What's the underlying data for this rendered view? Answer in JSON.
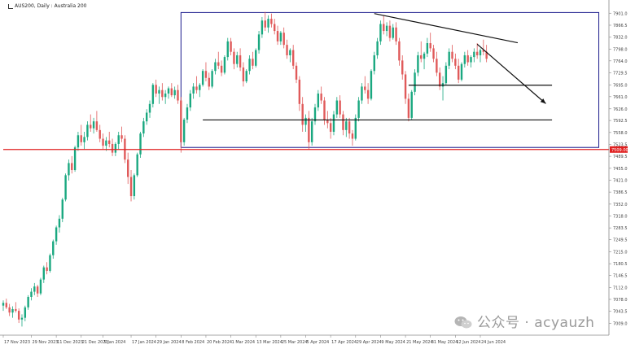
{
  "header": {
    "symbol_line": "AUS200, Daily : Australia 200"
  },
  "watermark": {
    "text": "公众号 · acyauzh",
    "icon": "wechat-icon"
  },
  "colors": {
    "bull": "#1aa880",
    "bear": "#e05a5a",
    "box": "#1b1b8c",
    "hline": "#e02020",
    "trend": "#111111",
    "axis_text": "#444444"
  },
  "chart_data": {
    "type": "candlestick",
    "title": "",
    "ylim": [
      6975,
      7925
    ],
    "y_ticks": [
      7901.0,
      7866.5,
      7832.0,
      7798.0,
      7764.0,
      7729.5,
      7695.0,
      7661.0,
      7626.0,
      7592.5,
      7558.0,
      7523.5,
      7489.5,
      7455.0,
      7421.0,
      7386.5,
      7352.0,
      7318.0,
      7283.5,
      7249.5,
      7215.0,
      7180.5,
      7146.5,
      7112.0,
      7078.0,
      7043.5,
      7009.0
    ],
    "x_ticks": [
      {
        "label": "17 Nov 2023",
        "i": 0
      },
      {
        "label": "29 Nov 2023",
        "i": 9
      },
      {
        "label": "11 Dec 2023",
        "i": 17
      },
      {
        "label": "21 Dec 2023",
        "i": 25
      },
      {
        "label": "5 Jan 2024",
        "i": 32
      },
      {
        "label": "17 Jan 2024",
        "i": 41
      },
      {
        "label": "29 Jan 2024",
        "i": 49
      },
      {
        "label": "8 Feb 2024",
        "i": 57
      },
      {
        "label": "20 Feb 2024",
        "i": 65
      },
      {
        "label": "1 Mar 2024",
        "i": 73
      },
      {
        "label": "13 Mar 2024",
        "i": 81
      },
      {
        "label": "25 Mar 2024",
        "i": 89
      },
      {
        "label": "5 Apr 2024",
        "i": 97
      },
      {
        "label": "17 Apr 2024",
        "i": 105
      },
      {
        "label": "29 Apr 2024",
        "i": 113
      },
      {
        "label": "9 May 2024",
        "i": 121
      },
      {
        "label": "21 May 2024",
        "i": 129
      },
      {
        "label": "31 May 2024",
        "i": 137
      },
      {
        "label": "12 Jun 2024",
        "i": 145
      },
      {
        "label": "24 Jun 2024",
        "i": 153
      }
    ],
    "candles": [
      [
        7060,
        7075,
        7045,
        7068
      ],
      [
        7068,
        7080,
        7050,
        7055
      ],
      [
        7055,
        7065,
        7030,
        7040
      ],
      [
        7040,
        7058,
        7025,
        7050
      ],
      [
        7050,
        7070,
        7040,
        7045
      ],
      [
        7045,
        7052,
        7010,
        7020
      ],
      [
        7020,
        7035,
        7000,
        7025
      ],
      [
        7025,
        7060,
        7015,
        7055
      ],
      [
        7055,
        7090,
        7048,
        7085
      ],
      [
        7085,
        7110,
        7075,
        7100
      ],
      [
        7100,
        7125,
        7090,
        7115
      ],
      [
        7115,
        7120,
        7085,
        7095
      ],
      [
        7095,
        7140,
        7090,
        7135
      ],
      [
        7135,
        7175,
        7125,
        7170
      ],
      [
        7170,
        7185,
        7150,
        7160
      ],
      [
        7160,
        7210,
        7155,
        7205
      ],
      [
        7205,
        7250,
        7195,
        7245
      ],
      [
        7245,
        7290,
        7235,
        7285
      ],
      [
        7285,
        7320,
        7270,
        7310
      ],
      [
        7310,
        7370,
        7300,
        7365
      ],
      [
        7365,
        7440,
        7360,
        7435
      ],
      [
        7435,
        7480,
        7420,
        7470
      ],
      [
        7470,
        7490,
        7440,
        7450
      ],
      [
        7450,
        7520,
        7445,
        7515
      ],
      [
        7515,
        7560,
        7505,
        7550
      ],
      [
        7550,
        7580,
        7520,
        7530
      ],
      [
        7530,
        7560,
        7510,
        7545
      ],
      [
        7545,
        7590,
        7535,
        7580
      ],
      [
        7580,
        7610,
        7560,
        7570
      ],
      [
        7570,
        7600,
        7555,
        7590
      ],
      [
        7590,
        7620,
        7560,
        7565
      ],
      [
        7565,
        7580,
        7530,
        7540
      ],
      [
        7540,
        7555,
        7510,
        7520
      ],
      [
        7520,
        7545,
        7505,
        7535
      ],
      [
        7535,
        7560,
        7515,
        7525
      ],
      [
        7525,
        7540,
        7490,
        7500
      ],
      [
        7500,
        7530,
        7490,
        7525
      ],
      [
        7525,
        7560,
        7510,
        7550
      ],
      [
        7550,
        7575,
        7530,
        7540
      ],
      [
        7540,
        7550,
        7470,
        7480
      ],
      [
        7480,
        7500,
        7410,
        7430
      ],
      [
        7430,
        7450,
        7360,
        7375
      ],
      [
        7375,
        7440,
        7365,
        7435
      ],
      [
        7435,
        7500,
        7430,
        7495
      ],
      [
        7495,
        7560,
        7485,
        7555
      ],
      [
        7555,
        7600,
        7545,
        7590
      ],
      [
        7590,
        7625,
        7580,
        7615
      ],
      [
        7615,
        7650,
        7600,
        7640
      ],
      [
        7640,
        7700,
        7630,
        7695
      ],
      [
        7695,
        7710,
        7660,
        7670
      ],
      [
        7670,
        7690,
        7640,
        7680
      ],
      [
        7680,
        7700,
        7650,
        7660
      ],
      [
        7660,
        7680,
        7640,
        7670
      ],
      [
        7670,
        7690,
        7655,
        7685
      ],
      [
        7685,
        7700,
        7660,
        7665
      ],
      [
        7665,
        7690,
        7655,
        7680
      ],
      [
        7680,
        7695,
        7640,
        7650
      ],
      [
        7650,
        7660,
        7500,
        7530
      ],
      [
        7530,
        7600,
        7520,
        7595
      ],
      [
        7595,
        7640,
        7585,
        7630
      ],
      [
        7630,
        7680,
        7620,
        7670
      ],
      [
        7670,
        7700,
        7655,
        7690
      ],
      [
        7690,
        7720,
        7670,
        7680
      ],
      [
        7680,
        7700,
        7660,
        7695
      ],
      [
        7695,
        7740,
        7690,
        7735
      ],
      [
        7735,
        7760,
        7705,
        7715
      ],
      [
        7715,
        7730,
        7680,
        7690
      ],
      [
        7690,
        7740,
        7685,
        7735
      ],
      [
        7735,
        7770,
        7725,
        7760
      ],
      [
        7760,
        7790,
        7740,
        7750
      ],
      [
        7750,
        7765,
        7720,
        7730
      ],
      [
        7730,
        7780,
        7725,
        7775
      ],
      [
        7775,
        7830,
        7765,
        7820
      ],
      [
        7820,
        7830,
        7780,
        7790
      ],
      [
        7790,
        7800,
        7740,
        7755
      ],
      [
        7755,
        7790,
        7745,
        7780
      ],
      [
        7780,
        7800,
        7735,
        7745
      ],
      [
        7745,
        7760,
        7690,
        7705
      ],
      [
        7705,
        7740,
        7700,
        7735
      ],
      [
        7735,
        7780,
        7725,
        7770
      ],
      [
        7770,
        7790,
        7740,
        7750
      ],
      [
        7750,
        7800,
        7745,
        7795
      ],
      [
        7795,
        7850,
        7785,
        7840
      ],
      [
        7840,
        7890,
        7830,
        7880
      ],
      [
        7880,
        7905,
        7850,
        7860
      ],
      [
        7860,
        7895,
        7845,
        7885
      ],
      [
        7885,
        7900,
        7860,
        7870
      ],
      [
        7870,
        7885,
        7840,
        7850
      ],
      [
        7850,
        7865,
        7810,
        7820
      ],
      [
        7820,
        7850,
        7810,
        7845
      ],
      [
        7845,
        7860,
        7800,
        7810
      ],
      [
        7810,
        7825,
        7770,
        7780
      ],
      [
        7780,
        7800,
        7760,
        7795
      ],
      [
        7795,
        7810,
        7740,
        7750
      ],
      [
        7750,
        7760,
        7700,
        7710
      ],
      [
        7710,
        7720,
        7620,
        7640
      ],
      [
        7640,
        7660,
        7560,
        7580
      ],
      [
        7580,
        7610,
        7560,
        7600
      ],
      [
        7600,
        7620,
        7510,
        7530
      ],
      [
        7530,
        7600,
        7520,
        7590
      ],
      [
        7590,
        7640,
        7580,
        7630
      ],
      [
        7630,
        7680,
        7620,
        7670
      ],
      [
        7670,
        7690,
        7640,
        7650
      ],
      [
        7650,
        7660,
        7580,
        7595
      ],
      [
        7595,
        7620,
        7570,
        7585
      ],
      [
        7585,
        7600,
        7540,
        7560
      ],
      [
        7560,
        7620,
        7550,
        7610
      ],
      [
        7610,
        7660,
        7600,
        7650
      ],
      [
        7650,
        7665,
        7600,
        7610
      ],
      [
        7610,
        7620,
        7550,
        7565
      ],
      [
        7565,
        7600,
        7545,
        7590
      ],
      [
        7590,
        7600,
        7540,
        7555
      ],
      [
        7555,
        7565,
        7520,
        7540
      ],
      [
        7540,
        7610,
        7535,
        7600
      ],
      [
        7600,
        7660,
        7590,
        7650
      ],
      [
        7650,
        7700,
        7640,
        7690
      ],
      [
        7690,
        7720,
        7670,
        7680
      ],
      [
        7680,
        7700,
        7640,
        7655
      ],
      [
        7655,
        7740,
        7650,
        7735
      ],
      [
        7735,
        7790,
        7725,
        7780
      ],
      [
        7780,
        7830,
        7770,
        7820
      ],
      [
        7820,
        7880,
        7810,
        7870
      ],
      [
        7870,
        7895,
        7840,
        7850
      ],
      [
        7850,
        7875,
        7835,
        7865
      ],
      [
        7865,
        7880,
        7820,
        7830
      ],
      [
        7830,
        7870,
        7825,
        7860
      ],
      [
        7860,
        7875,
        7810,
        7820
      ],
      [
        7820,
        7830,
        7750,
        7765
      ],
      [
        7765,
        7780,
        7710,
        7725
      ],
      [
        7725,
        7735,
        7640,
        7655
      ],
      [
        7655,
        7670,
        7590,
        7600
      ],
      [
        7600,
        7680,
        7595,
        7675
      ],
      [
        7675,
        7740,
        7665,
        7730
      ],
      [
        7730,
        7790,
        7720,
        7780
      ],
      [
        7780,
        7820,
        7760,
        7770
      ],
      [
        7770,
        7790,
        7740,
        7785
      ],
      [
        7785,
        7830,
        7775,
        7815
      ],
      [
        7815,
        7845,
        7790,
        7800
      ],
      [
        7800,
        7810,
        7760,
        7770
      ],
      [
        7770,
        7790,
        7720,
        7730
      ],
      [
        7730,
        7745,
        7680,
        7690
      ],
      [
        7690,
        7720,
        7650,
        7700
      ],
      [
        7700,
        7760,
        7695,
        7750
      ],
      [
        7750,
        7800,
        7740,
        7790
      ],
      [
        7790,
        7810,
        7760,
        7770
      ],
      [
        7770,
        7785,
        7740,
        7750
      ],
      [
        7750,
        7770,
        7700,
        7710
      ],
      [
        7710,
        7760,
        7705,
        7755
      ],
      [
        7755,
        7790,
        7745,
        7780
      ],
      [
        7780,
        7795,
        7750,
        7760
      ],
      [
        7760,
        7780,
        7745,
        7775
      ],
      [
        7775,
        7800,
        7760,
        7790
      ],
      [
        7790,
        7815,
        7770,
        7780
      ],
      [
        7780,
        7800,
        7760,
        7795
      ],
      [
        7795,
        7825,
        7780,
        7790
      ],
      [
        7790,
        7810,
        7760,
        7770
      ]
    ],
    "annotations": {
      "range_box": {
        "i_start": 57,
        "i_end": 191,
        "price_top": 7903,
        "price_bottom": 7515
      },
      "horizontal_lines": [
        {
          "price": 7594,
          "i_start": 64,
          "i_end": 176,
          "color": "trend"
        },
        {
          "price": 7694,
          "i_start": 130,
          "i_end": 176,
          "color": "trend"
        },
        {
          "price": 7509,
          "i_start": 0,
          "i_end": 191,
          "color": "hline"
        }
      ],
      "trendline": {
        "i_start": 119,
        "price_start": 7900,
        "i_end": 165,
        "price_end": 7816
      },
      "arrow": {
        "i_start": 152,
        "price_start": 7812,
        "i_end": 174,
        "price_end": 7641
      },
      "price_label": {
        "price": 7509,
        "text": "7509.00"
      }
    }
  }
}
